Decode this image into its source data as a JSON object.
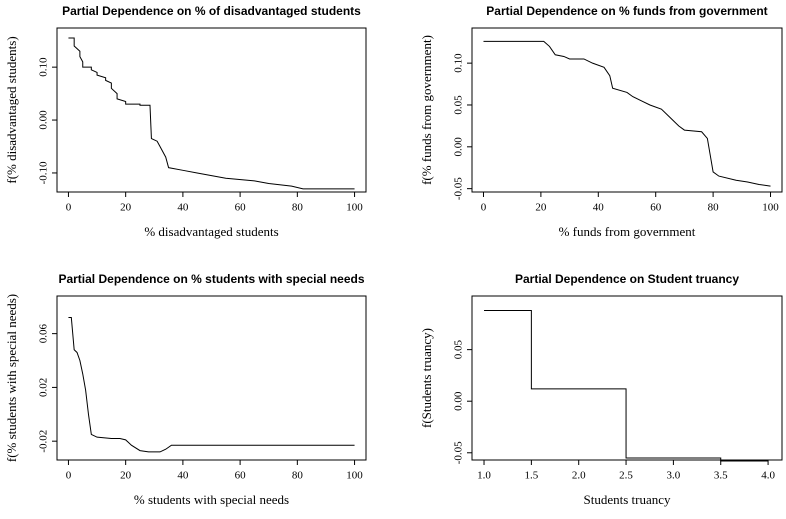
{
  "chart_data": [
    {
      "type": "line",
      "title": "Partial Dependence on % of disadvantaged students",
      "x_label": "% disadvantaged students",
      "y_label": "f(% disadvantaged students)",
      "color": "#000000",
      "x": [
        0,
        2,
        2,
        4,
        4,
        5,
        5,
        8,
        8,
        10,
        10,
        13,
        13,
        15,
        15,
        17,
        17,
        20,
        20,
        25,
        25,
        28.5,
        29,
        31,
        32,
        34,
        35,
        40,
        45,
        50,
        55,
        65,
        70,
        78,
        82,
        100
      ],
      "values": [
        0.155,
        0.155,
        0.14,
        0.13,
        0.12,
        0.11,
        0.1,
        0.1,
        0.095,
        0.09,
        0.085,
        0.08,
        0.075,
        0.07,
        0.06,
        0.05,
        0.04,
        0.035,
        0.03,
        0.03,
        0.028,
        0.028,
        -0.035,
        -0.04,
        -0.05,
        -0.07,
        -0.09,
        -0.095,
        -0.1,
        -0.105,
        -0.11,
        -0.115,
        -0.12,
        -0.125,
        -0.13,
        -0.13
      ],
      "xlim": [
        -4,
        104
      ],
      "ylim": [
        -0.136,
        0.174
      ],
      "xticks": [
        0,
        20,
        40,
        60,
        80,
        100
      ],
      "yticks": [
        {
          "value": -0.1,
          "label": "-0.10"
        },
        {
          "value": 0,
          "label": "0.00"
        },
        {
          "value": 0.1,
          "label": "0.10"
        }
      ]
    },
    {
      "type": "line",
      "title": "Partial Dependence on % funds from government",
      "x_label": "% funds from government",
      "y_label": "f(% funds from government)",
      "color": "#000000",
      "x": [
        0,
        21,
        23,
        25,
        28,
        30,
        35,
        38,
        42,
        44,
        45,
        50,
        52,
        55,
        58,
        62,
        65,
        68,
        70,
        76,
        78,
        79,
        80,
        82,
        88,
        92,
        96,
        100
      ],
      "values": [
        0.126,
        0.126,
        0.12,
        0.11,
        0.108,
        0.105,
        0.105,
        0.1,
        0.095,
        0.085,
        0.07,
        0.065,
        0.06,
        0.055,
        0.05,
        0.045,
        0.035,
        0.025,
        0.02,
        0.018,
        0.01,
        -0.01,
        -0.03,
        -0.035,
        -0.04,
        -0.042,
        -0.045,
        -0.047
      ],
      "xlim": [
        -4,
        104
      ],
      "ylim": [
        -0.054,
        0.142
      ],
      "xticks": [
        0,
        20,
        40,
        60,
        80,
        100
      ],
      "yticks": [
        {
          "value": -0.05,
          "label": "-0.05"
        },
        {
          "value": 0,
          "label": "0.00"
        },
        {
          "value": 0.05,
          "label": "0.05"
        },
        {
          "value": 0.1,
          "label": "0.10"
        }
      ]
    },
    {
      "type": "line",
      "title": "Partial Dependence on % students with special needs",
      "x_label": "% students with special needs",
      "y_label": "f(% students with special needs)",
      "color": "#000000",
      "x": [
        0,
        1,
        2,
        3,
        4,
        5,
        6,
        7,
        8,
        10,
        15,
        18,
        20,
        22,
        25,
        28,
        32,
        34,
        36,
        40,
        100
      ],
      "values": [
        0.072,
        0.072,
        0.048,
        0.046,
        0.04,
        0.03,
        0.018,
        0.0,
        -0.015,
        -0.017,
        -0.018,
        -0.018,
        -0.019,
        -0.023,
        -0.027,
        -0.028,
        -0.028,
        -0.026,
        -0.023,
        -0.023,
        -0.023
      ],
      "xlim": [
        -4,
        104
      ],
      "ylim": [
        -0.034,
        0.088
      ],
      "xticks": [
        0,
        20,
        40,
        60,
        80,
        100
      ],
      "yticks": [
        {
          "value": -0.02,
          "label": "-0.02"
        },
        {
          "value": 0.02,
          "label": "0.02"
        },
        {
          "value": 0.06,
          "label": "0.06"
        }
      ]
    },
    {
      "type": "line",
      "title": "Partial Dependence on Student truancy",
      "x_label": "Students truancy",
      "y_label": "f(Students truancy)",
      "color": "#000000",
      "x": [
        1,
        1.5,
        1.5,
        2.5,
        2.5,
        3.5,
        3.5,
        4
      ],
      "values": [
        0.088,
        0.088,
        0.012,
        0.012,
        -0.055,
        -0.055,
        -0.058,
        -0.058
      ],
      "xlim": [
        0.873,
        4.147
      ],
      "ylim": [
        -0.057,
        0.102
      ],
      "xticks": [
        {
          "value": 1,
          "label": "1.0"
        },
        {
          "value": 1.5,
          "label": "1.5"
        },
        {
          "value": 2,
          "label": "2.0"
        },
        {
          "value": 2.5,
          "label": "2.5"
        },
        {
          "value": 3,
          "label": "3.0"
        },
        {
          "value": 3.5,
          "label": "3.5"
        },
        {
          "value": 4,
          "label": "4.0"
        }
      ],
      "yticks": [
        {
          "value": -0.05,
          "label": "-0.05"
        },
        {
          "value": 0,
          "label": "0.00"
        },
        {
          "value": 0.05,
          "label": "0.05"
        }
      ]
    }
  ]
}
